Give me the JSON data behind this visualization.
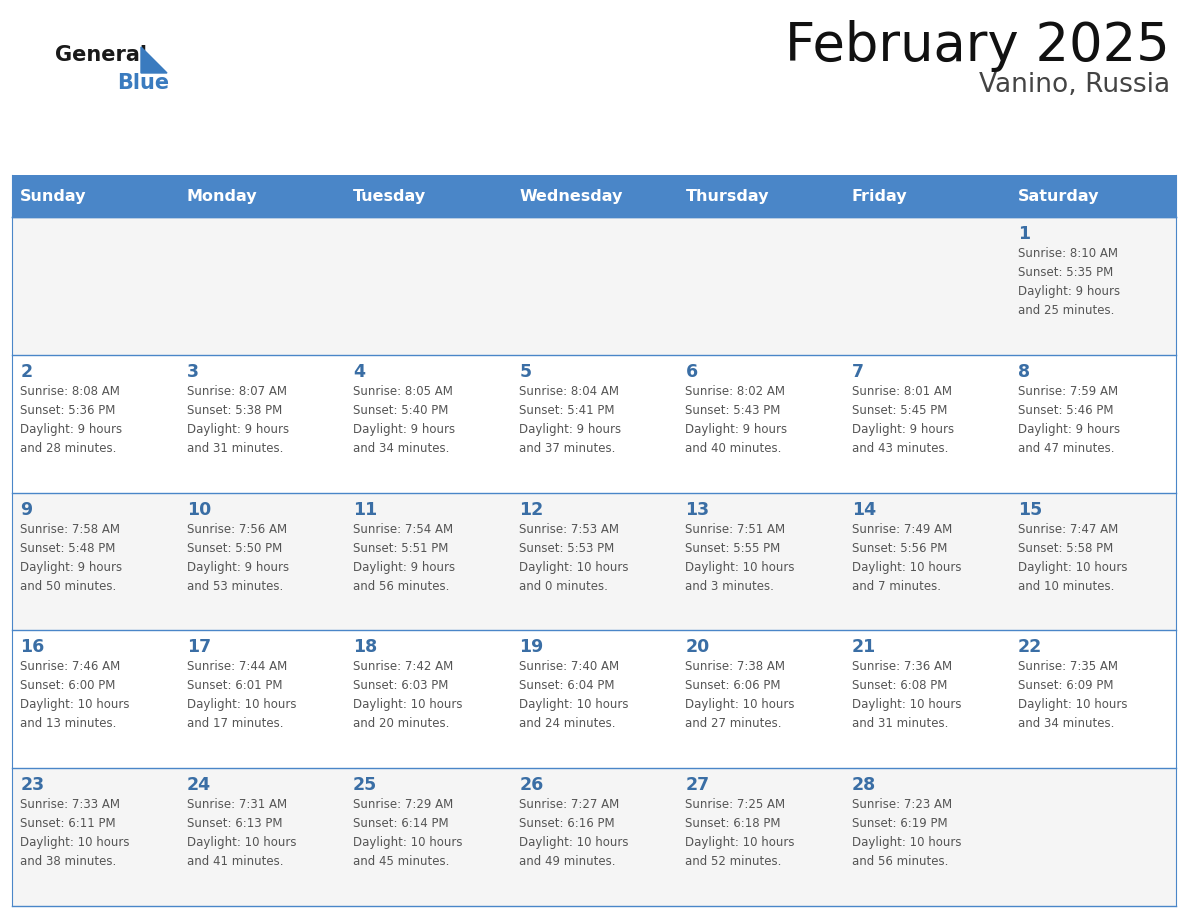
{
  "title": "February 2025",
  "subtitle": "Vanino, Russia",
  "header_bg": "#4a86c8",
  "header_text_color": "#ffffff",
  "cell_bg_odd": "#f5f5f5",
  "cell_bg_even": "#ffffff",
  "day_number_color": "#3a6ea5",
  "text_color": "#555555",
  "line_color": "#4a86c8",
  "border_color": "#c8d8e8",
  "days_of_week": [
    "Sunday",
    "Monday",
    "Tuesday",
    "Wednesday",
    "Thursday",
    "Friday",
    "Saturday"
  ],
  "weeks": [
    [
      {
        "day": null,
        "info": null
      },
      {
        "day": null,
        "info": null
      },
      {
        "day": null,
        "info": null
      },
      {
        "day": null,
        "info": null
      },
      {
        "day": null,
        "info": null
      },
      {
        "day": null,
        "info": null
      },
      {
        "day": 1,
        "info": "Sunrise: 8:10 AM\nSunset: 5:35 PM\nDaylight: 9 hours\nand 25 minutes."
      }
    ],
    [
      {
        "day": 2,
        "info": "Sunrise: 8:08 AM\nSunset: 5:36 PM\nDaylight: 9 hours\nand 28 minutes."
      },
      {
        "day": 3,
        "info": "Sunrise: 8:07 AM\nSunset: 5:38 PM\nDaylight: 9 hours\nand 31 minutes."
      },
      {
        "day": 4,
        "info": "Sunrise: 8:05 AM\nSunset: 5:40 PM\nDaylight: 9 hours\nand 34 minutes."
      },
      {
        "day": 5,
        "info": "Sunrise: 8:04 AM\nSunset: 5:41 PM\nDaylight: 9 hours\nand 37 minutes."
      },
      {
        "day": 6,
        "info": "Sunrise: 8:02 AM\nSunset: 5:43 PM\nDaylight: 9 hours\nand 40 minutes."
      },
      {
        "day": 7,
        "info": "Sunrise: 8:01 AM\nSunset: 5:45 PM\nDaylight: 9 hours\nand 43 minutes."
      },
      {
        "day": 8,
        "info": "Sunrise: 7:59 AM\nSunset: 5:46 PM\nDaylight: 9 hours\nand 47 minutes."
      }
    ],
    [
      {
        "day": 9,
        "info": "Sunrise: 7:58 AM\nSunset: 5:48 PM\nDaylight: 9 hours\nand 50 minutes."
      },
      {
        "day": 10,
        "info": "Sunrise: 7:56 AM\nSunset: 5:50 PM\nDaylight: 9 hours\nand 53 minutes."
      },
      {
        "day": 11,
        "info": "Sunrise: 7:54 AM\nSunset: 5:51 PM\nDaylight: 9 hours\nand 56 minutes."
      },
      {
        "day": 12,
        "info": "Sunrise: 7:53 AM\nSunset: 5:53 PM\nDaylight: 10 hours\nand 0 minutes."
      },
      {
        "day": 13,
        "info": "Sunrise: 7:51 AM\nSunset: 5:55 PM\nDaylight: 10 hours\nand 3 minutes."
      },
      {
        "day": 14,
        "info": "Sunrise: 7:49 AM\nSunset: 5:56 PM\nDaylight: 10 hours\nand 7 minutes."
      },
      {
        "day": 15,
        "info": "Sunrise: 7:47 AM\nSunset: 5:58 PM\nDaylight: 10 hours\nand 10 minutes."
      }
    ],
    [
      {
        "day": 16,
        "info": "Sunrise: 7:46 AM\nSunset: 6:00 PM\nDaylight: 10 hours\nand 13 minutes."
      },
      {
        "day": 17,
        "info": "Sunrise: 7:44 AM\nSunset: 6:01 PM\nDaylight: 10 hours\nand 17 minutes."
      },
      {
        "day": 18,
        "info": "Sunrise: 7:42 AM\nSunset: 6:03 PM\nDaylight: 10 hours\nand 20 minutes."
      },
      {
        "day": 19,
        "info": "Sunrise: 7:40 AM\nSunset: 6:04 PM\nDaylight: 10 hours\nand 24 minutes."
      },
      {
        "day": 20,
        "info": "Sunrise: 7:38 AM\nSunset: 6:06 PM\nDaylight: 10 hours\nand 27 minutes."
      },
      {
        "day": 21,
        "info": "Sunrise: 7:36 AM\nSunset: 6:08 PM\nDaylight: 10 hours\nand 31 minutes."
      },
      {
        "day": 22,
        "info": "Sunrise: 7:35 AM\nSunset: 6:09 PM\nDaylight: 10 hours\nand 34 minutes."
      }
    ],
    [
      {
        "day": 23,
        "info": "Sunrise: 7:33 AM\nSunset: 6:11 PM\nDaylight: 10 hours\nand 38 minutes."
      },
      {
        "day": 24,
        "info": "Sunrise: 7:31 AM\nSunset: 6:13 PM\nDaylight: 10 hours\nand 41 minutes."
      },
      {
        "day": 25,
        "info": "Sunrise: 7:29 AM\nSunset: 6:14 PM\nDaylight: 10 hours\nand 45 minutes."
      },
      {
        "day": 26,
        "info": "Sunrise: 7:27 AM\nSunset: 6:16 PM\nDaylight: 10 hours\nand 49 minutes."
      },
      {
        "day": 27,
        "info": "Sunrise: 7:25 AM\nSunset: 6:18 PM\nDaylight: 10 hours\nand 52 minutes."
      },
      {
        "day": 28,
        "info": "Sunrise: 7:23 AM\nSunset: 6:19 PM\nDaylight: 10 hours\nand 56 minutes."
      },
      {
        "day": null,
        "info": null
      }
    ]
  ],
  "logo_general_color": "#1a1a1a",
  "logo_blue_color": "#3a7bbf",
  "fig_width": 11.88,
  "fig_height": 9.18,
  "dpi": 100
}
